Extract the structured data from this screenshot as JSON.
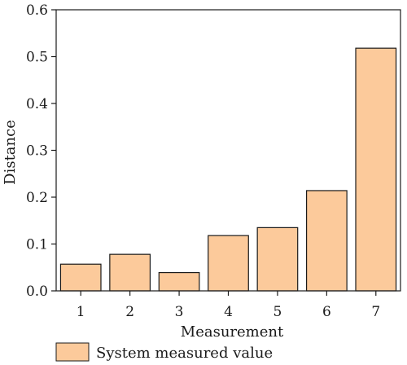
{
  "chart_data": {
    "type": "bar",
    "categories": [
      "1",
      "2",
      "3",
      "4",
      "5",
      "6",
      "7"
    ],
    "series": [
      {
        "name": "System measured value",
        "values": [
          0.057,
          0.078,
          0.039,
          0.118,
          0.135,
          0.214,
          0.518
        ],
        "color": "#FCCA9B",
        "edge_color": "#1a1a1a"
      }
    ],
    "title": "",
    "xlabel": "Measurement",
    "ylabel": "Distance",
    "ylim": [
      0,
      0.6
    ],
    "yticks": [
      0.0,
      0.1,
      0.2,
      0.3,
      0.4,
      0.5,
      0.6
    ],
    "ytick_labels": [
      "0.0",
      "0.1",
      "0.2",
      "0.3",
      "0.4",
      "0.5",
      "0.6"
    ],
    "grid": false,
    "legend_position": "bottom-left"
  }
}
